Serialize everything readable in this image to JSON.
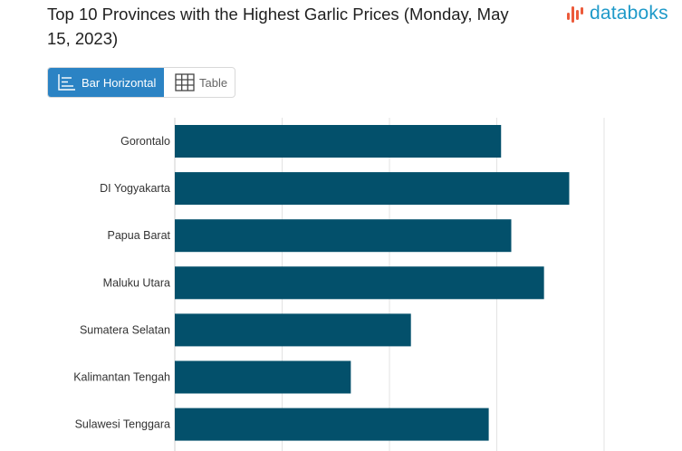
{
  "header": {
    "title": "Top 10 Provinces with the Highest Garlic Prices (Monday, May 15, 2023)",
    "brand": "databoks"
  },
  "view_toggle": {
    "bar_label": "Bar Horizontal",
    "table_label": "Table",
    "active": "bar"
  },
  "colors": {
    "bar": "#03506b",
    "accent": "#2b83c4",
    "grid": "#e3e3e3",
    "logo_bars": "#ec5a3a",
    "logo_text": "#1f9ac9"
  },
  "chart_data": {
    "type": "bar",
    "orientation": "horizontal",
    "categories": [
      "Gorontalo",
      "DI Yogyakarta",
      "Papua Barat",
      "Maluku Utara",
      "Sumatera Selatan",
      "Kalimantan Tengah",
      "Sulawesi Tenggara"
    ],
    "values": [
      60800,
      73500,
      62700,
      68800,
      44000,
      32800,
      58500
    ],
    "xlim": [
      0,
      80000
    ],
    "grid": true
  }
}
